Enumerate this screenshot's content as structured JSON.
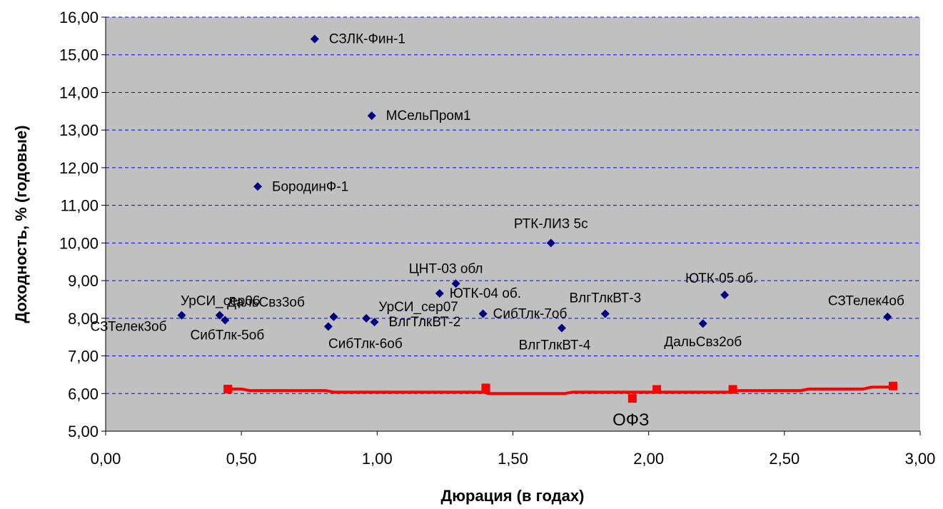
{
  "chart_data": {
    "type": "scatter",
    "xlabel": "Дюрация (в годах)",
    "ylabel": "Доходность, % (годовые)",
    "xlim": [
      0,
      3
    ],
    "ylim": [
      5,
      16
    ],
    "x_ticks": [
      "0,00",
      "0,50",
      "1,00",
      "1,50",
      "2,00",
      "2,50",
      "3,00"
    ],
    "y_ticks": [
      "5,00",
      "6,00",
      "7,00",
      "8,00",
      "9,00",
      "10,00",
      "11,00",
      "12,00",
      "13,00",
      "14,00",
      "15,00",
      "16,00"
    ],
    "grid": "horizontal dashed",
    "colors": {
      "plot_bg": "#c0c0c0",
      "points": "#000080",
      "curve": "#ff0000",
      "grid": "#0000ff"
    },
    "points": [
      {
        "label": "СЗЛК-Фин-1",
        "x": 0.77,
        "y": 15.42
      },
      {
        "label": "МСельПром1",
        "x": 0.98,
        "y": 13.38
      },
      {
        "label": "БородинФ-1",
        "x": 0.56,
        "y": 11.5
      },
      {
        "label": "РТК-ЛИЗ 5с",
        "x": 1.64,
        "y": 10.0
      },
      {
        "label": "ЦНТ-03 обл",
        "x": 1.29,
        "y": 8.92
      },
      {
        "label": "ЮТК-04 об.",
        "x": 1.23,
        "y": 8.66
      },
      {
        "label": "ЮТК-05 об.",
        "x": 2.28,
        "y": 8.62
      },
      {
        "label": "УрСИ_сер06",
        "x": 0.42,
        "y": 8.08
      },
      {
        "label": "СЗТелек3об",
        "x": 0.28,
        "y": 8.08
      },
      {
        "label": "СибТлк-5об",
        "x": 0.44,
        "y": 7.95
      },
      {
        "label": "ДальСвз3об",
        "x": 0.84,
        "y": 8.04
      },
      {
        "label": "СибТлк-6об",
        "x": 0.82,
        "y": 7.78
      },
      {
        "label": "УрСИ_сер07",
        "x": 0.96,
        "y": 8.0
      },
      {
        "label": "ВлгТлкВТ-2",
        "x": 0.99,
        "y": 7.9
      },
      {
        "label": "СибТлк-7об",
        "x": 1.39,
        "y": 8.12
      },
      {
        "label": "ВлгТлкВТ-4",
        "x": 1.68,
        "y": 7.74
      },
      {
        "label": "ВлгТлкВТ-3",
        "x": 1.84,
        "y": 8.12
      },
      {
        "label": "ДальСвз2об",
        "x": 2.2,
        "y": 7.86
      },
      {
        "label": "СЗТелек4об",
        "x": 2.88,
        "y": 8.04
      }
    ],
    "ofz_series": {
      "name": "ОФЗ",
      "points": [
        {
          "x": 0.45,
          "y": 6.12
        },
        {
          "x": 1.4,
          "y": 6.15
        },
        {
          "x": 1.94,
          "y": 5.87
        },
        {
          "x": 2.03,
          "y": 6.11
        },
        {
          "x": 2.31,
          "y": 6.11
        },
        {
          "x": 2.9,
          "y": 6.2
        }
      ],
      "curve": [
        {
          "x": 0.45,
          "y": 6.12
        },
        {
          "x": 0.5,
          "y": 6.12
        },
        {
          "x": 0.53,
          "y": 6.08
        },
        {
          "x": 0.81,
          "y": 6.08
        },
        {
          "x": 0.84,
          "y": 6.04
        },
        {
          "x": 1.39,
          "y": 6.04
        },
        {
          "x": 1.41,
          "y": 6.0
        },
        {
          "x": 1.69,
          "y": 6.0
        },
        {
          "x": 1.72,
          "y": 6.04
        },
        {
          "x": 2.3,
          "y": 6.04
        },
        {
          "x": 2.33,
          "y": 6.08
        },
        {
          "x": 2.56,
          "y": 6.08
        },
        {
          "x": 2.59,
          "y": 6.12
        },
        {
          "x": 2.79,
          "y": 6.12
        },
        {
          "x": 2.82,
          "y": 6.17
        },
        {
          "x": 2.9,
          "y": 6.17
        }
      ]
    }
  }
}
